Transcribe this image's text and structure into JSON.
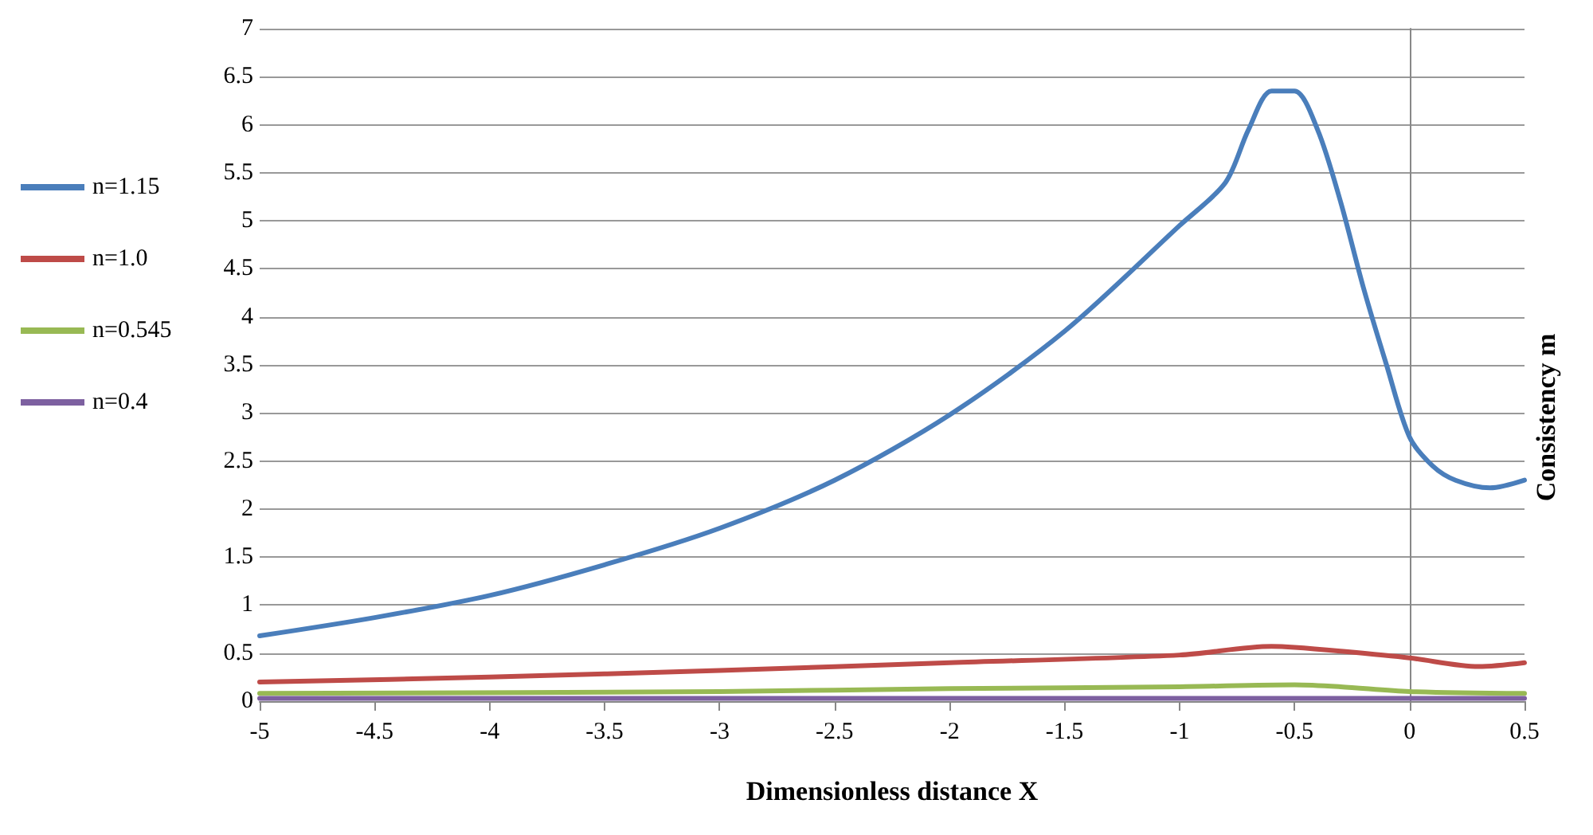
{
  "chart_data": {
    "type": "line",
    "xlabel": "Dimensionless distance X",
    "ylabel": "Consistency m",
    "xlim": [
      -5,
      0.5
    ],
    "xticks": [
      -5,
      -4.5,
      -4,
      -3.5,
      -3,
      -2.5,
      -2,
      -1.5,
      -1,
      -0.5,
      0,
      0.5
    ],
    "ylim": [
      0,
      7
    ],
    "yticks": [
      0,
      0.5,
      1,
      1.5,
      2,
      2.5,
      3,
      3.5,
      4,
      4.5,
      5,
      5.5,
      6,
      6.5,
      7
    ],
    "grid": "y",
    "legend": "left",
    "marker": "none",
    "line_style": "solid",
    "series": [
      {
        "name": "n=1.15",
        "color": "#4a7ebb",
        "x": [
          -5,
          -4.5,
          -4,
          -3.5,
          -3,
          -2.5,
          -2,
          -1.5,
          -1,
          -0.8,
          -0.7,
          -0.6,
          -0.5,
          -0.4,
          -0.3,
          -0.2,
          -0.1,
          0,
          0.1,
          0.2,
          0.35,
          0.5
        ],
        "values": [
          0.68,
          0.87,
          1.1,
          1.42,
          1.8,
          2.3,
          2.98,
          3.85,
          4.95,
          5.4,
          5.95,
          6.35,
          6.35,
          5.95,
          5.2,
          4.3,
          3.5,
          2.75,
          2.45,
          2.3,
          2.22,
          2.3
        ]
      },
      {
        "name": "n=1.0",
        "color": "#be4b48",
        "x": [
          -5,
          -4,
          -3,
          -2,
          -1,
          -0.6,
          -0.5,
          -0.3,
          0,
          0.3,
          0.5
        ],
        "values": [
          0.2,
          0.25,
          0.32,
          0.4,
          0.48,
          0.57,
          0.56,
          0.52,
          0.45,
          0.36,
          0.4
        ]
      },
      {
        "name": "n=0.545",
        "color": "#98b954",
        "x": [
          -5,
          -3,
          -2,
          -1,
          -0.5,
          -0.3,
          0,
          0.5
        ],
        "values": [
          0.08,
          0.1,
          0.13,
          0.15,
          0.17,
          0.15,
          0.1,
          0.08
        ]
      },
      {
        "name": "n=0.4",
        "color": "#7d60a0",
        "x": [
          -5,
          0.5
        ],
        "values": [
          0.03,
          0.03
        ]
      }
    ]
  }
}
